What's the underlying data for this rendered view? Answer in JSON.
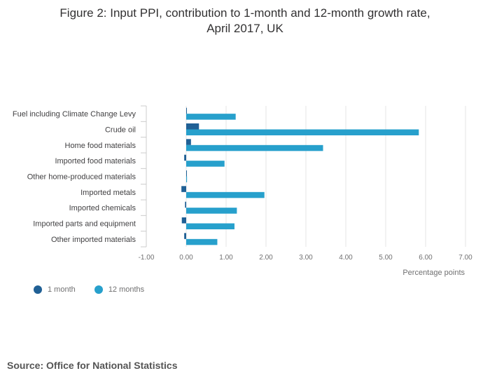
{
  "title_lines": [
    "Figure 2: Input PPI, contribution to 1-month and 12-month growth rate,",
    "April 2017, UK"
  ],
  "source": "Source: Office for National Statistics",
  "colors": {
    "one_month": "#206095",
    "twelve_months": "#27a0cc",
    "grid": "#e6e6e6",
    "axis": "#cccccc"
  },
  "chart_data": {
    "type": "bar",
    "orientation": "horizontal",
    "categories": [
      "Fuel including Climate Change Levy",
      "Crude oil",
      "Home food materials",
      "Imported food materials",
      "Other home-produced materials",
      "Imported metals",
      "Imported chemicals",
      "Imported parts and equipment",
      "Other imported materials"
    ],
    "series": [
      {
        "name": "1 month",
        "values": [
          0.0,
          0.32,
          0.12,
          -0.05,
          0.01,
          -0.12,
          -0.03,
          -0.11,
          -0.05
        ]
      },
      {
        "name": "12 months",
        "values": [
          1.24,
          5.83,
          3.43,
          0.96,
          0.02,
          1.96,
          1.27,
          1.21,
          0.78
        ]
      }
    ],
    "xlabel": "Percentage points",
    "xlim": [
      -1.0,
      7.0
    ],
    "xticks": [
      "-1.00",
      "0.00",
      "1.00",
      "2.00",
      "3.00",
      "4.00",
      "5.00",
      "6.00",
      "7.00"
    ],
    "grid": true,
    "legend_position": "bottom-left"
  }
}
